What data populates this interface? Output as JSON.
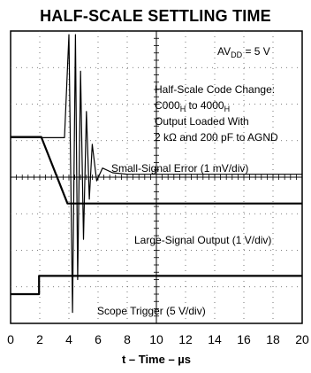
{
  "chart_data": {
    "type": "line",
    "title": "HALF-SCALE SETTLING TIME",
    "xlabel": "t – Time – µs",
    "ylabel": "",
    "xlim": [
      0,
      20
    ],
    "x_ticks": [
      "0",
      "2",
      "4",
      "6",
      "8",
      "10",
      "12",
      "14",
      "16",
      "18",
      "20"
    ],
    "grid": "dotted, 10 x 8 divisions",
    "annotations": {
      "supply_main": "AV",
      "supply_sub": "DD",
      "supply_rest": " = 5 V",
      "cond_line1": "Half-Scale Code Change:",
      "cond_line2_a": "C000",
      "cond_line2_sub1": "H",
      "cond_line2_b": " to 4000",
      "cond_line2_sub2": "H",
      "cond_line3": "Output Loaded With",
      "cond_line4": "2 kΩ and 200 pF to AGND"
    },
    "series": [
      {
        "name": "Small-Signal Error (1 mV/div)",
        "x": [
          0,
          2,
          3.7,
          4.0,
          4.25,
          4.45,
          4.6,
          4.8,
          5.0,
          5.2,
          5.4,
          5.6,
          5.9,
          6.3,
          7,
          8,
          20
        ],
        "y": [
          5.08,
          5.08,
          5.08,
          7.9,
          0.3,
          7.9,
          1.2,
          6.9,
          2.3,
          5.8,
          3.4,
          4.9,
          3.9,
          4.25,
          4.12,
          4.08,
          4.08
        ]
      },
      {
        "name": "Large-Signal Output (1 V/div)",
        "x": [
          0,
          2.1,
          3.9,
          20
        ],
        "y": [
          5.1,
          5.1,
          3.28,
          3.28
        ]
      },
      {
        "name": "Scope Trigger (5 V/div)",
        "x": [
          0,
          1.95,
          1.95,
          20
        ],
        "y": [
          0.8,
          0.8,
          1.3,
          1.3
        ]
      }
    ]
  }
}
